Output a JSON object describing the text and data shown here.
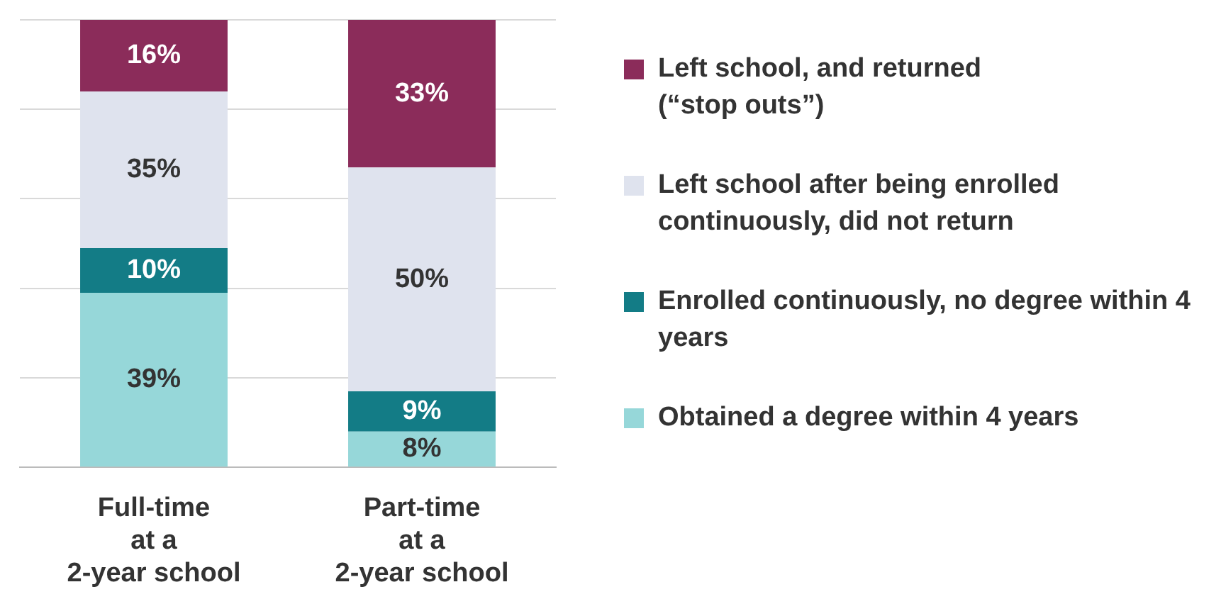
{
  "chart_data": {
    "type": "bar",
    "stacked": true,
    "categories": [
      "Full-time\nat a\n2-year school",
      "Part-time\nat a\n2-year school"
    ],
    "series": [
      {
        "name": "Obtained a degree within 4 years",
        "color": "#96d7d9",
        "values": [
          39,
          8
        ],
        "value_labels": [
          "39%",
          "8%"
        ]
      },
      {
        "name": "Enrolled continuously, no degree within 4 years",
        "color": "#137c86",
        "values": [
          10,
          9
        ],
        "value_labels": [
          "10%",
          "9%"
        ]
      },
      {
        "name": "Left school after being enrolled continuously, did not return",
        "color": "#dfe3ee",
        "values": [
          35,
          50
        ],
        "value_labels": [
          "35%",
          "50%"
        ]
      },
      {
        "name": "Left school, and returned\n(“stop outs”)",
        "color": "#8b2c5a",
        "values": [
          16,
          33
        ],
        "value_labels": [
          "16%",
          "33%"
        ]
      }
    ],
    "ylim": [
      0,
      100
    ],
    "yticks": [
      {
        "value": 0,
        "label": null
      },
      {
        "value": 20,
        "label": null
      },
      {
        "value": 40,
        "label": null
      },
      {
        "value": 60,
        "label": null
      },
      {
        "value": 80,
        "label": null
      },
      {
        "value": 100,
        "label": null
      }
    ],
    "tick_labels": "x",
    "grid": "y",
    "legend": "right"
  }
}
